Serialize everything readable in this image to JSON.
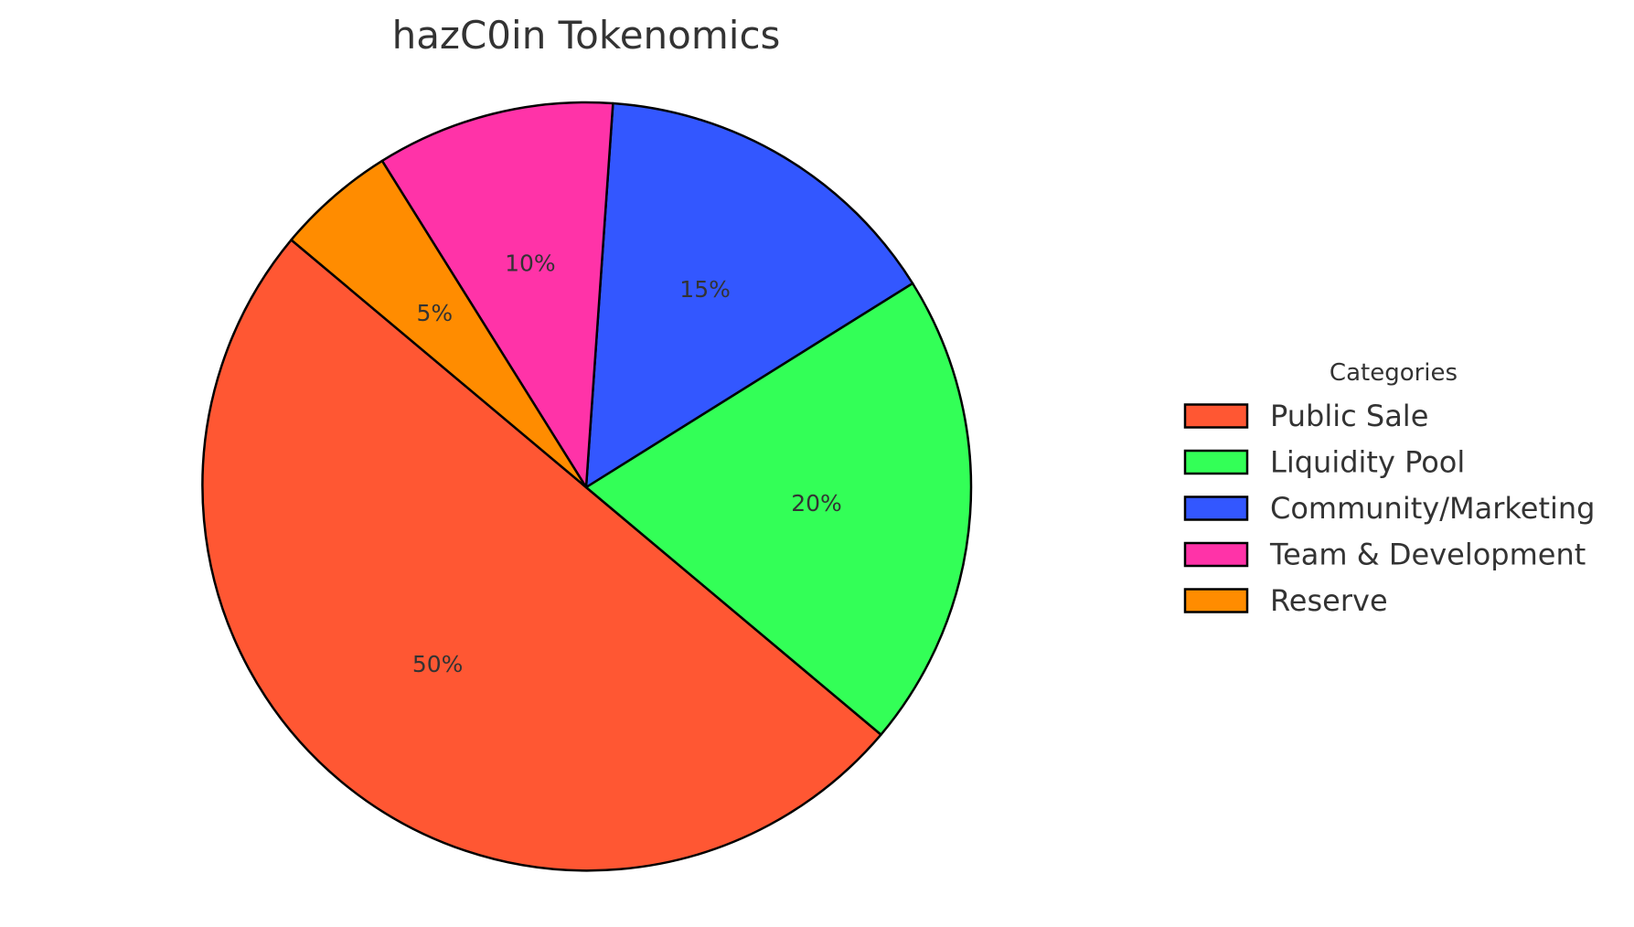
{
  "chart_data": {
    "type": "pie",
    "title": "hazC0in Tokenomics",
    "slices": [
      {
        "label": "Public Sale",
        "value": 50,
        "display": "50%",
        "color": "#ff5733"
      },
      {
        "label": "Liquidity Pool",
        "value": 20,
        "display": "20%",
        "color": "#33ff57"
      },
      {
        "label": "Community/Marketing",
        "value": 15,
        "display": "15%",
        "color": "#3357ff"
      },
      {
        "label": "Team & Development",
        "value": 10,
        "display": "10%",
        "color": "#ff33a8"
      },
      {
        "label": "Reserve",
        "value": 5,
        "display": "5%",
        "color": "#ff8c00"
      }
    ],
    "start_angle_deg": 140,
    "direction": "counterclockwise",
    "legend": {
      "title": "Categories",
      "placement": "center-right"
    }
  }
}
